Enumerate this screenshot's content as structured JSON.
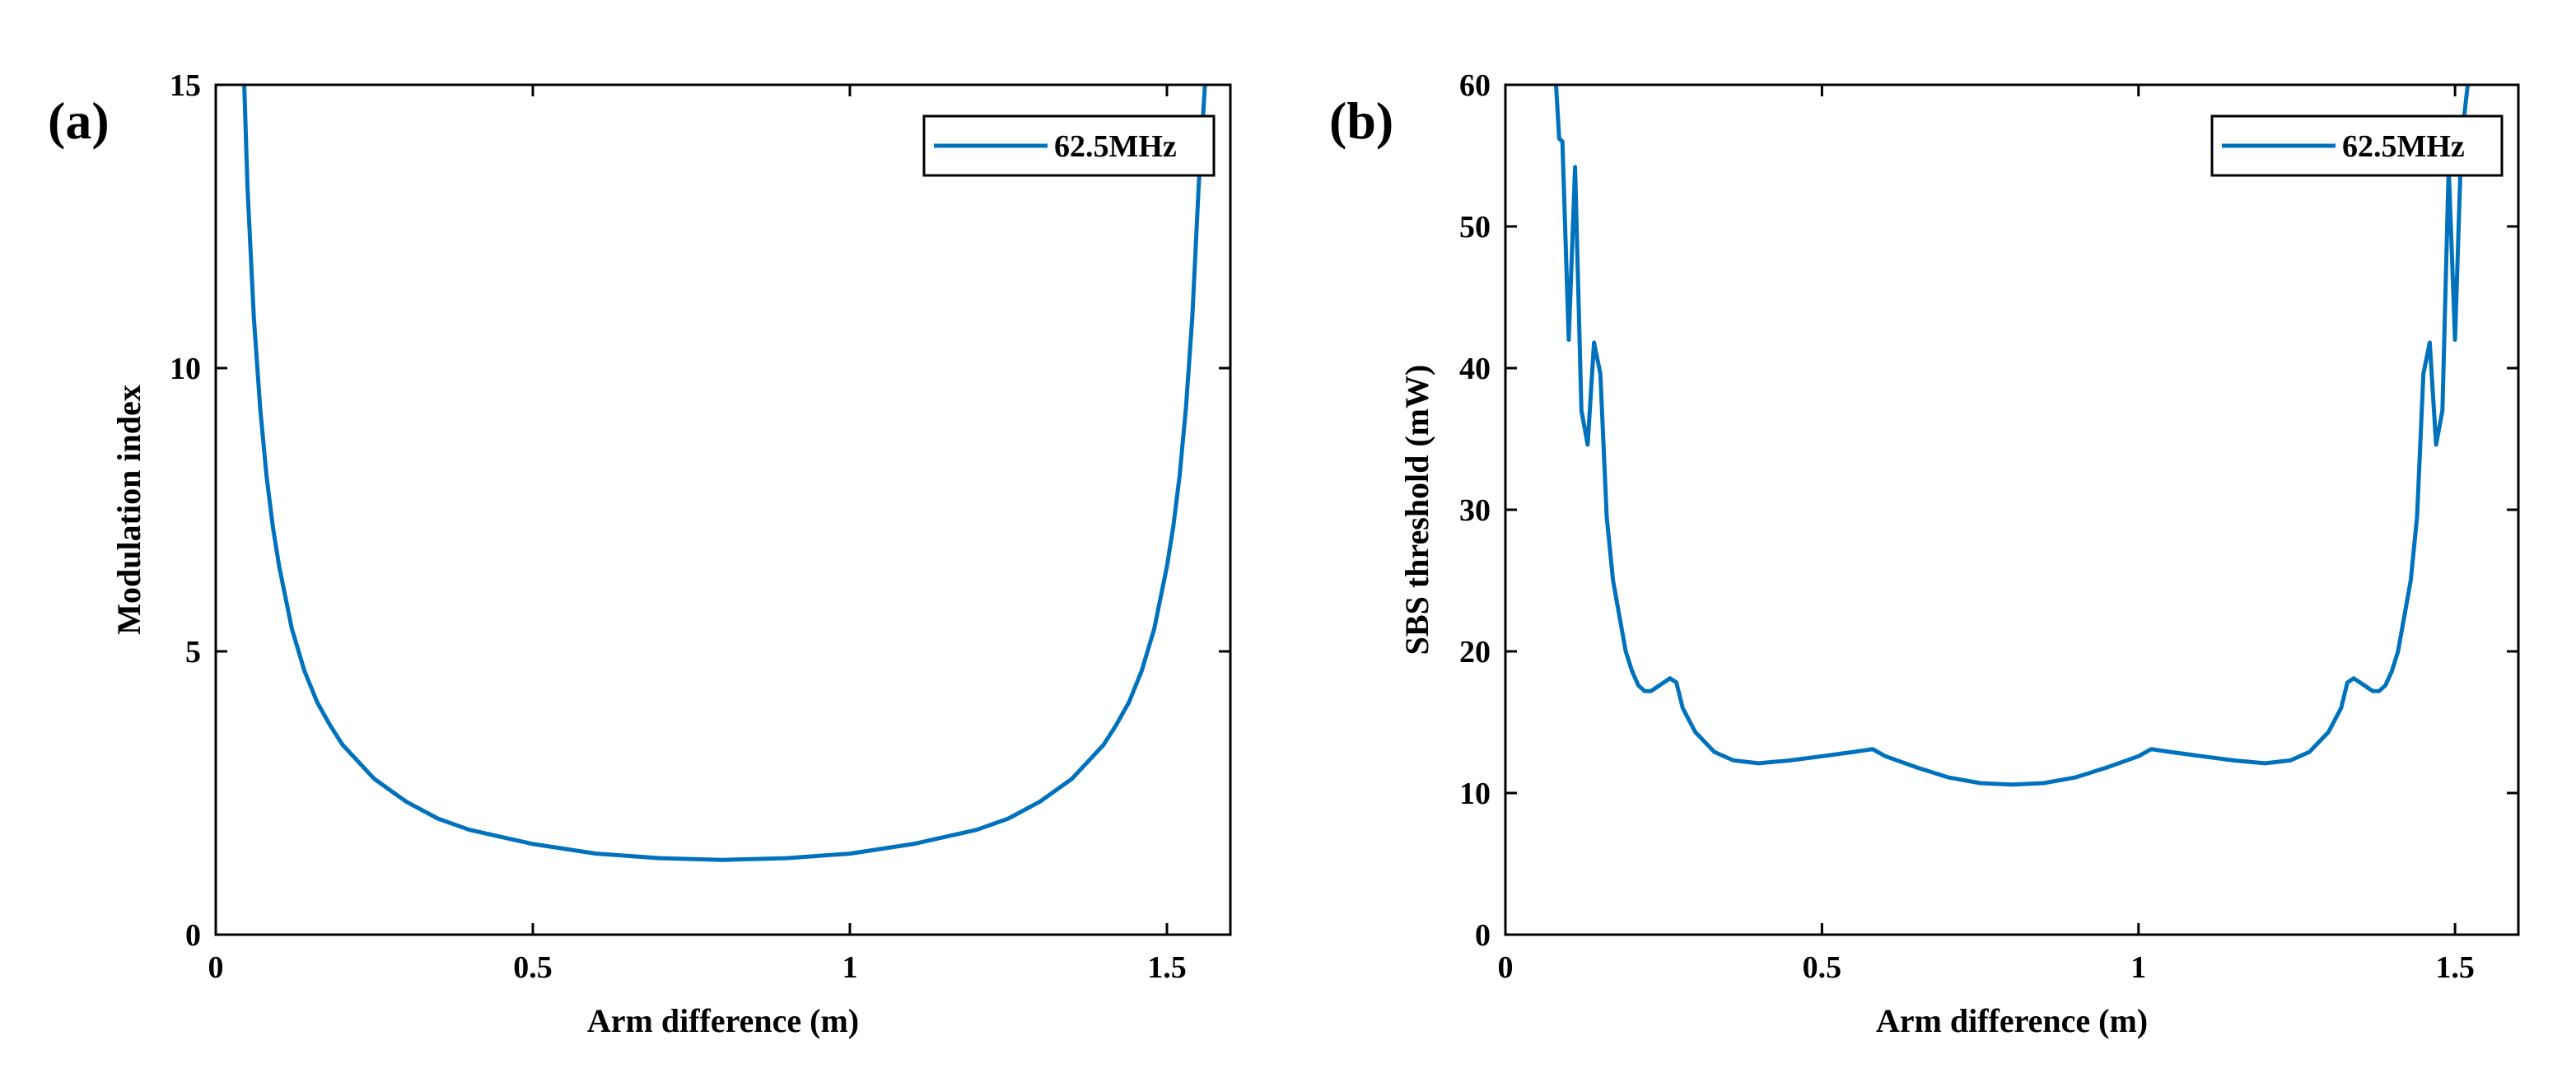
{
  "colors": {
    "series": "#0072BD",
    "axis": "#000000",
    "background": "#ffffff"
  },
  "chart_data": [
    {
      "type": "line",
      "panel_label": "(a)",
      "xlabel": "Arm difference (m)",
      "ylabel": "Modulation index",
      "xlim": [
        0,
        1.6
      ],
      "ylim": [
        0,
        15
      ],
      "xticks": [
        0,
        0.5,
        1,
        1.5
      ],
      "xtick_labels": [
        "0",
        "0.5",
        "1",
        "1.5"
      ],
      "yticks": [
        0,
        5,
        10,
        15
      ],
      "ytick_labels": [
        "0",
        "5",
        "10",
        "15"
      ],
      "grid": false,
      "legend": {
        "entries": [
          "62.5MHz"
        ],
        "placement": "top-right"
      },
      "series": [
        {
          "name": "62.5MHz",
          "x": [
            0.045,
            0.05,
            0.06,
            0.07,
            0.08,
            0.09,
            0.1,
            0.12,
            0.14,
            0.16,
            0.18,
            0.2,
            0.25,
            0.3,
            0.35,
            0.4,
            0.5,
            0.6,
            0.7,
            0.8,
            0.9,
            1.0,
            1.1,
            1.2,
            1.25,
            1.3,
            1.35,
            1.4,
            1.42,
            1.44,
            1.46,
            1.48,
            1.5,
            1.51,
            1.52,
            1.53,
            1.54,
            1.55,
            1.56
          ],
          "y": [
            15,
            13.2,
            10.9,
            9.3,
            8.1,
            7.2,
            6.5,
            5.4,
            4.65,
            4.1,
            3.7,
            3.35,
            2.75,
            2.35,
            2.05,
            1.85,
            1.6,
            1.43,
            1.35,
            1.32,
            1.35,
            1.43,
            1.6,
            1.85,
            2.05,
            2.35,
            2.75,
            3.35,
            3.7,
            4.1,
            4.65,
            5.4,
            6.5,
            7.2,
            8.1,
            9.3,
            10.9,
            13.2,
            15
          ]
        }
      ]
    },
    {
      "type": "line",
      "panel_label": "(b)",
      "xlabel": "Arm difference (m)",
      "ylabel": "SBS threshold (mW)",
      "xlim": [
        0,
        1.6
      ],
      "ylim": [
        0,
        60
      ],
      "xticks": [
        0,
        0.5,
        1,
        1.5
      ],
      "xtick_labels": [
        "0",
        "0.5",
        "1",
        "1.5"
      ],
      "yticks": [
        0,
        10,
        20,
        30,
        40,
        50,
        60
      ],
      "ytick_labels": [
        "0",
        "10",
        "20",
        "30",
        "40",
        "50",
        "60"
      ],
      "grid": false,
      "legend": {
        "entries": [
          "62.5MHz"
        ],
        "placement": "top-right"
      },
      "series": [
        {
          "name": "62.5MHz",
          "x": [
            0.08,
            0.085,
            0.09,
            0.1,
            0.11,
            0.12,
            0.13,
            0.14,
            0.15,
            0.16,
            0.17,
            0.18,
            0.19,
            0.2,
            0.21,
            0.22,
            0.23,
            0.24,
            0.25,
            0.26,
            0.27,
            0.28,
            0.3,
            0.33,
            0.36,
            0.4,
            0.45,
            0.5,
            0.55,
            0.58,
            0.6,
            0.65,
            0.7,
            0.75,
            0.8,
            0.85,
            0.9,
            0.95,
            1.0,
            1.02,
            1.05,
            1.1,
            1.15,
            1.2,
            1.24,
            1.27,
            1.3,
            1.32,
            1.33,
            1.34,
            1.35,
            1.36,
            1.37,
            1.38,
            1.39,
            1.4,
            1.41,
            1.42,
            1.43,
            1.44,
            1.45,
            1.46,
            1.47,
            1.48,
            1.49,
            1.5,
            1.51,
            1.52
          ],
          "y": [
            60,
            56.2,
            56.0,
            42,
            54.2,
            37.0,
            34.6,
            41.8,
            39.6,
            29.5,
            25.0,
            22.5,
            20.0,
            18.6,
            17.6,
            17.2,
            17.2,
            17.5,
            17.8,
            18.1,
            17.8,
            16.0,
            14.3,
            12.9,
            12.3,
            12.1,
            12.3,
            12.6,
            12.9,
            13.1,
            12.6,
            11.8,
            11.1,
            10.7,
            10.6,
            10.7,
            11.1,
            11.8,
            12.6,
            13.1,
            12.9,
            12.6,
            12.3,
            12.1,
            12.3,
            12.9,
            14.3,
            16.0,
            17.8,
            18.1,
            17.8,
            17.5,
            17.2,
            17.2,
            17.6,
            18.6,
            20.0,
            22.5,
            25.0,
            29.5,
            39.6,
            41.8,
            34.6,
            37.0,
            54.2,
            42,
            56.0,
            60
          ]
        }
      ]
    }
  ]
}
